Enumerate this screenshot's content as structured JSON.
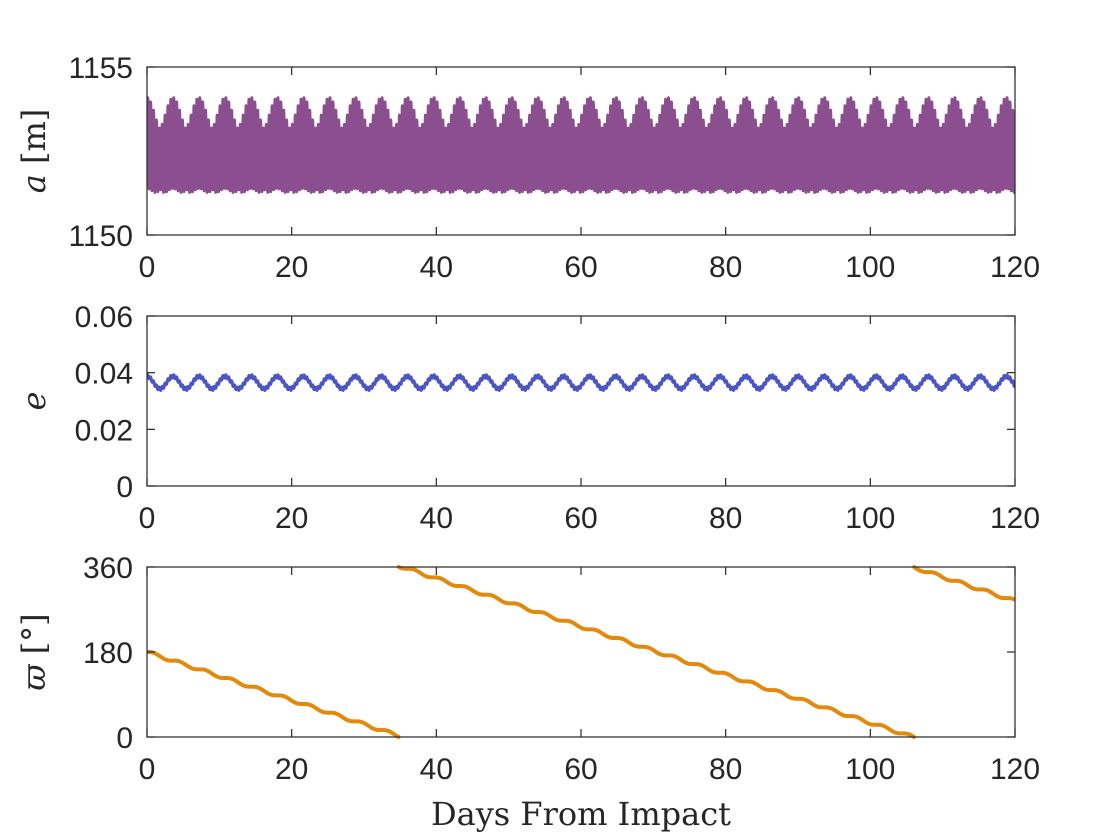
{
  "chart_data": [
    {
      "type": "line",
      "id": "semi-major-axis",
      "ylabel": "a [m]",
      "ylabel_parts": [
        "a",
        " [m]"
      ],
      "xlabel": "",
      "xlim": [
        0,
        120
      ],
      "ylim": [
        1150,
        1155
      ],
      "xticks": [
        "0",
        "20",
        "40",
        "60",
        "80",
        "100",
        "120"
      ],
      "yticks": [
        "1150",
        "1155"
      ],
      "grid": false,
      "series": [
        {
          "color": "#8B4F8F",
          "model": "oscillation",
          "mean": 1152.5,
          "fast_amplitude": 1.35,
          "fast_period_days": 0.4,
          "envelope_amplitude": 0.8,
          "envelope_period_days": 3.6,
          "x_range": [
            0,
            120
          ]
        }
      ]
    },
    {
      "type": "line",
      "id": "eccentricity",
      "ylabel": "e",
      "xlabel": "",
      "xlim": [
        0,
        120
      ],
      "ylim": [
        0,
        0.06
      ],
      "xticks": [
        "0",
        "20",
        "40",
        "60",
        "80",
        "100",
        "120"
      ],
      "yticks": [
        "0",
        "0.02",
        "0.04",
        "0.06"
      ],
      "grid": false,
      "series": [
        {
          "color": "#4B55C4",
          "model": "oscillation",
          "mean": 0.0365,
          "fast_amplitude": 0.0006,
          "fast_period_days": 0.4,
          "envelope_amplitude": 0.0022,
          "envelope_period_days": 3.6,
          "x_range": [
            0,
            120
          ]
        }
      ]
    },
    {
      "type": "line",
      "id": "longitude-of-periapsis",
      "ylabel": "ϖ [°]",
      "ylabel_parts": [
        "ϖ",
        " [°]"
      ],
      "xlabel": "Days From Impact",
      "xlim": [
        0,
        120
      ],
      "ylim": [
        0,
        360
      ],
      "xticks": [
        "0",
        "20",
        "40",
        "60",
        "80",
        "100",
        "120"
      ],
      "yticks": [
        "0",
        "180",
        "360"
      ],
      "grid": false,
      "series": [
        {
          "color": "#E38A0C",
          "model": "wrapped-linear",
          "start_value": 180,
          "slope_deg_per_day": -5.1,
          "wrap_period": 360,
          "wiggle_amplitude": 3,
          "wiggle_period_days": 3.6,
          "x_range": [
            0,
            120
          ]
        }
      ]
    }
  ]
}
